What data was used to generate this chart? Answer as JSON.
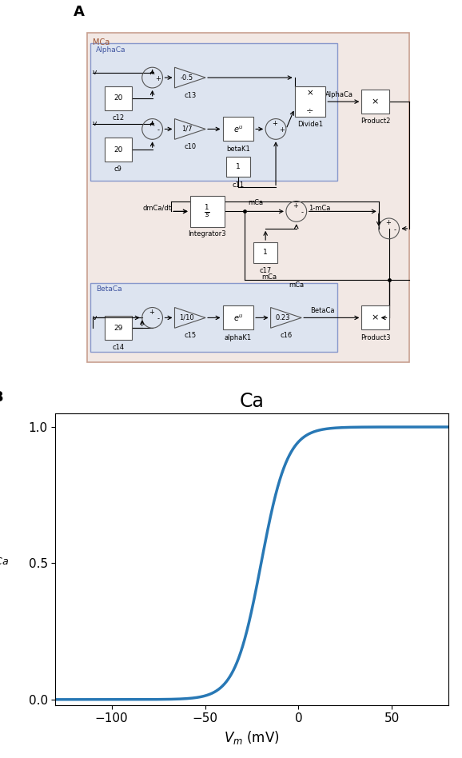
{
  "title_A": "A",
  "title_B": "B",
  "plot_title": "Ca",
  "xlabel": "V_m (mV)",
  "xlim": [
    -130,
    80
  ],
  "ylim": [
    -0.02,
    1.05
  ],
  "xticks": [
    -100,
    -50,
    0,
    50
  ],
  "yticks": [
    0,
    0.5,
    1
  ],
  "line_color": "#2878b5",
  "line_width": 2.5,
  "sigmoid_midpoint": -20,
  "sigmoid_slope": 7,
  "bg_color_outer": "#f2e8e4",
  "bg_color_inner": "#dde4f0",
  "outer_edge": "#c8a090",
  "inner_edge": "#8898cc",
  "figsize": [
    5.78,
    9.48
  ],
  "dpi": 100
}
